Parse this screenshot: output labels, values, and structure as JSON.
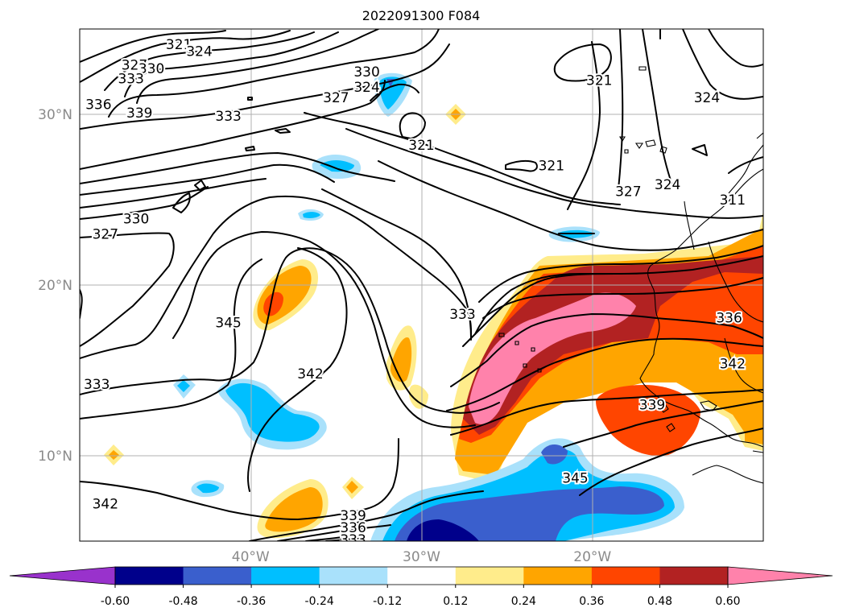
{
  "title": "2022091300 F084",
  "lon_ticks": [
    {
      "label": "40°W",
      "lon": -40
    },
    {
      "label": "30°W",
      "lon": -30
    },
    {
      "label": "20°W",
      "lon": -20
    }
  ],
  "lat_ticks": [
    {
      "label": "30°N",
      "lat": 30
    },
    {
      "label": "20°N",
      "lat": 20
    },
    {
      "label": "10°N",
      "lat": 10
    }
  ],
  "extent": {
    "lon_min": -50,
    "lon_max": -10,
    "lat_min": 5,
    "lat_max": 35
  },
  "colorbar": {
    "levels": [
      "-0.60",
      "-0.48",
      "-0.36",
      "-0.24",
      "-0.12",
      "0.12",
      "0.24",
      "0.36",
      "0.48",
      "0.60"
    ],
    "colors": [
      "#9932cc",
      "#00008b",
      "#3a5fcd",
      "#00bfff",
      "#a9e1fb",
      "#ffffff",
      "#ffec8b",
      "#ffa500",
      "#ff4500",
      "#b22222",
      "#ff82ab"
    ],
    "extend": "both"
  },
  "contour_labels": [
    {
      "text": "321",
      "lon": -44.2,
      "lat": 34.1
    },
    {
      "text": "324",
      "lon": -43.0,
      "lat": 33.7
    },
    {
      "text": "327",
      "lon": -46.8,
      "lat": 32.9
    },
    {
      "text": "330",
      "lon": -45.8,
      "lat": 32.7
    },
    {
      "text": "333",
      "lon": -47.0,
      "lat": 32.1
    },
    {
      "text": "336",
      "lon": -48.9,
      "lat": 30.6
    },
    {
      "text": "339",
      "lon": -46.5,
      "lat": 30.1
    },
    {
      "text": "333",
      "lon": -41.3,
      "lat": 29.9
    },
    {
      "text": "327",
      "lon": -35.0,
      "lat": 31.0
    },
    {
      "text": "330",
      "lon": -33.2,
      "lat": 32.5
    },
    {
      "text": "324",
      "lon": -33.2,
      "lat": 31.6
    },
    {
      "text": "321",
      "lon": -30.0,
      "lat": 28.2
    },
    {
      "text": "321",
      "lon": -19.6,
      "lat": 32.0
    },
    {
      "text": "324",
      "lon": -13.3,
      "lat": 31.0
    },
    {
      "text": "321",
      "lon": -22.4,
      "lat": 27.0
    },
    {
      "text": "327",
      "lon": -17.9,
      "lat": 25.5
    },
    {
      "text": "324",
      "lon": -15.6,
      "lat": 25.9
    },
    {
      "text": "311",
      "lon": -11.8,
      "lat": 25.0
    },
    {
      "text": "327",
      "lon": -48.5,
      "lat": 23.0
    },
    {
      "text": "330",
      "lon": -46.7,
      "lat": 23.9
    },
    {
      "text": "333",
      "lon": -27.6,
      "lat": 18.3
    },
    {
      "text": "345",
      "lon": -41.3,
      "lat": 17.8
    },
    {
      "text": "336",
      "lon": -12.0,
      "lat": 18.1
    },
    {
      "text": "342",
      "lon": -11.8,
      "lat": 15.4
    },
    {
      "text": "333",
      "lon": -49.0,
      "lat": 14.2
    },
    {
      "text": "342",
      "lon": -36.5,
      "lat": 14.8
    },
    {
      "text": "339",
      "lon": -16.5,
      "lat": 13.0
    },
    {
      "text": "345",
      "lon": -21.0,
      "lat": 8.7
    },
    {
      "text": "342",
      "lon": -48.5,
      "lat": 7.2
    },
    {
      "text": "339",
      "lon": -34.0,
      "lat": 6.5
    },
    {
      "text": "336",
      "lon": -34.0,
      "lat": 5.8
    },
    {
      "text": "333",
      "lon": -34.0,
      "lat": 5.1
    }
  ]
}
